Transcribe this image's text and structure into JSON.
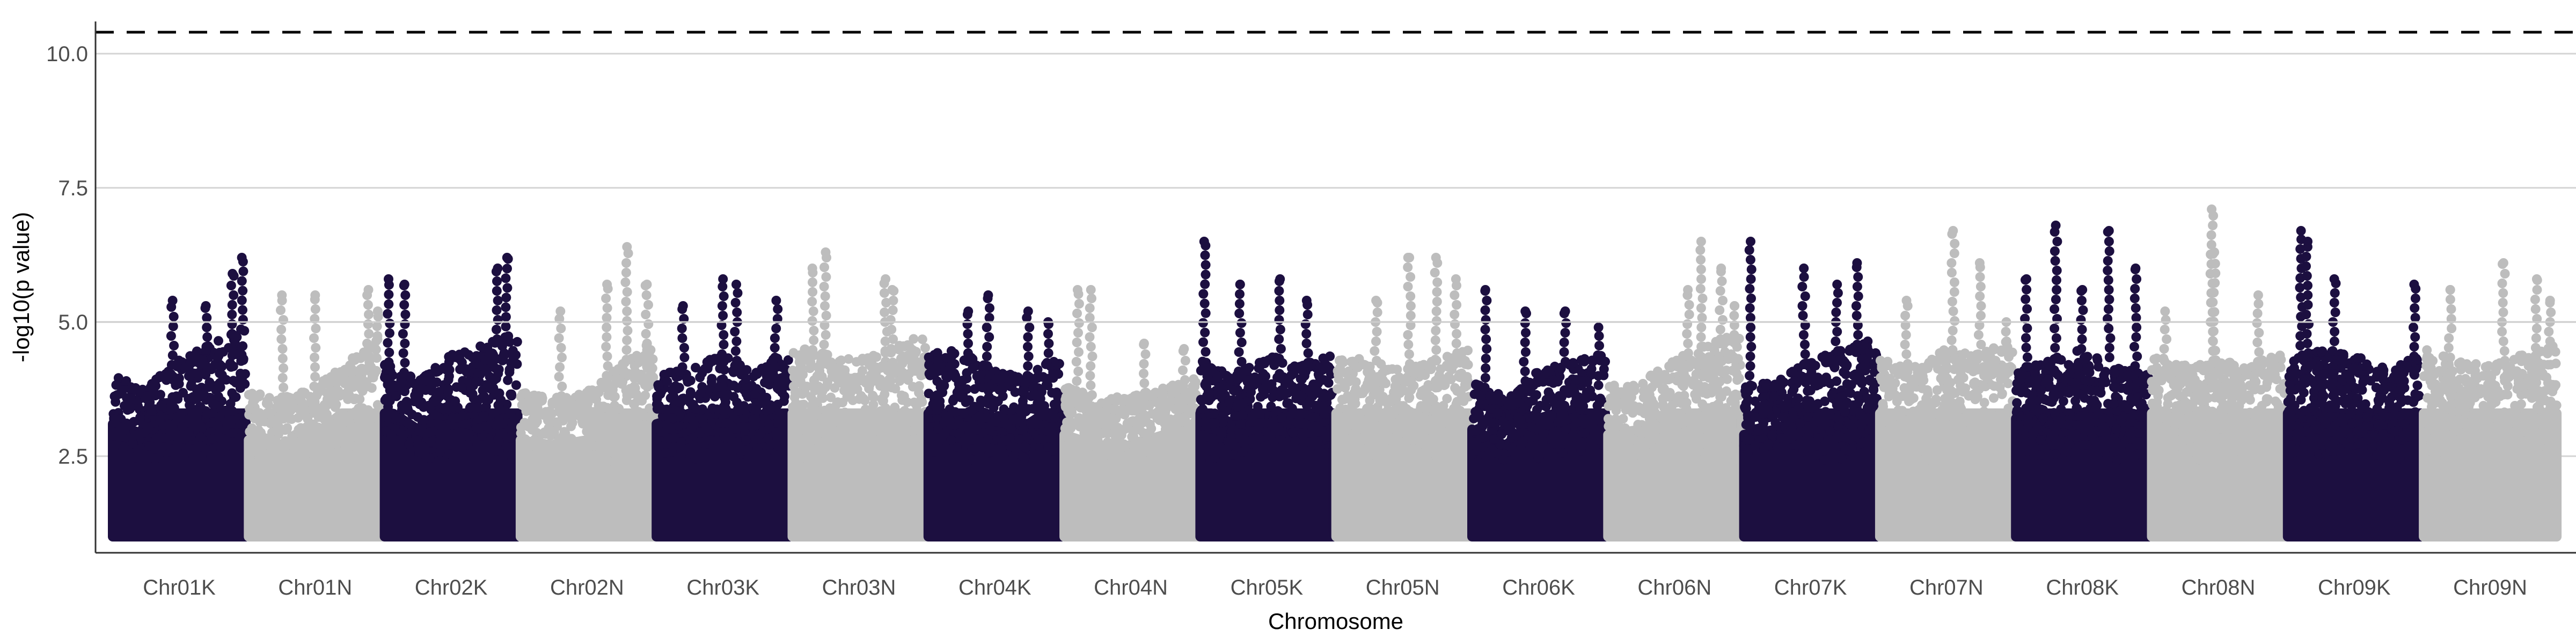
{
  "chart_data": {
    "type": "scatter",
    "title": "",
    "xlabel": "Chromosome",
    "ylabel": "-log10(p value)",
    "ylim": [
      0.6,
      10.45
    ],
    "yticks": [
      "2.5",
      "5.0",
      "7.5",
      "10.0"
    ],
    "ytick_values": [
      2.5,
      5.0,
      7.5,
      10.0
    ],
    "grid": "horizontal major lines",
    "legend": "none",
    "reference_lines": [
      {
        "y": 10.4,
        "style": "dashed",
        "color": "#000000"
      },
      {
        "y": 5.0,
        "style": "solid",
        "color": "#cccccc"
      }
    ],
    "point_min_y": 1.0,
    "colors": {
      "odd_chromosome": "#1c0f40",
      "even_chromosome": "#bdbdbd"
    },
    "categories": [
      "Chr01K",
      "Chr01N",
      "Chr02K",
      "Chr02N",
      "Chr03K",
      "Chr03N",
      "Chr04K",
      "Chr04N",
      "Chr05K",
      "Chr05N",
      "Chr06K",
      "Chr06N",
      "Chr07K",
      "Chr07N",
      "Chr08K",
      "Chr08N",
      "Chr09K",
      "Chr09N"
    ],
    "series": [
      {
        "chromosome": "Chr01K",
        "color": "#1c0f40",
        "band_top": [
          4.0,
          3.8,
          4.3,
          4.6,
          4.9
        ],
        "peaks": [
          [
            0.45,
            5.4
          ],
          [
            0.7,
            5.3
          ],
          [
            0.9,
            5.9
          ],
          [
            0.97,
            6.2
          ]
        ]
      },
      {
        "chromosome": "Chr01N",
        "color": "#bdbdbd",
        "band_top": [
          3.7,
          3.6,
          3.8,
          4.3,
          4.8
        ],
        "peaks": [
          [
            0.25,
            5.5
          ],
          [
            0.5,
            5.5
          ],
          [
            0.9,
            5.6
          ],
          [
            0.97,
            5.2
          ]
        ]
      },
      {
        "chromosome": "Chr02K",
        "color": "#1c0f40",
        "band_top": [
          4.3,
          3.9,
          4.4,
          4.6,
          4.8
        ],
        "peaks": [
          [
            0.03,
            5.8
          ],
          [
            0.15,
            5.7
          ],
          [
            0.85,
            6.0
          ],
          [
            0.92,
            6.2
          ]
        ]
      },
      {
        "chromosome": "Chr02N",
        "color": "#bdbdbd",
        "band_top": [
          3.7,
          3.6,
          3.7,
          4.2,
          4.7
        ],
        "peaks": [
          [
            0.3,
            5.2
          ],
          [
            0.65,
            5.7
          ],
          [
            0.8,
            6.4
          ],
          [
            0.95,
            5.7
          ]
        ]
      },
      {
        "chromosome": "Chr03K",
        "color": "#1c0f40",
        "band_top": [
          4.0,
          4.2,
          4.4,
          4.1,
          4.5
        ],
        "peaks": [
          [
            0.2,
            5.3
          ],
          [
            0.5,
            5.8
          ],
          [
            0.6,
            5.7
          ],
          [
            0.9,
            5.4
          ]
        ]
      },
      {
        "chromosome": "Chr03N",
        "color": "#bdbdbd",
        "band_top": [
          4.6,
          4.4,
          4.3,
          4.5,
          4.8
        ],
        "peaks": [
          [
            0.15,
            6.0
          ],
          [
            0.25,
            6.3
          ],
          [
            0.7,
            5.8
          ],
          [
            0.75,
            5.6
          ]
        ]
      },
      {
        "chromosome": "Chr04K",
        "color": "#1c0f40",
        "band_top": [
          4.4,
          4.5,
          4.1,
          4.0,
          4.4
        ],
        "peaks": [
          [
            0.3,
            5.2
          ],
          [
            0.45,
            5.5
          ],
          [
            0.75,
            5.2
          ],
          [
            0.9,
            5.0
          ]
        ]
      },
      {
        "chromosome": "Chr04N",
        "color": "#bdbdbd",
        "band_top": [
          3.8,
          3.6,
          3.6,
          3.8,
          4.0
        ],
        "peaks": [
          [
            0.1,
            5.6
          ],
          [
            0.2,
            5.6
          ],
          [
            0.6,
            4.6
          ],
          [
            0.9,
            4.5
          ]
        ]
      },
      {
        "chromosome": "Chr05K",
        "color": "#1c0f40",
        "band_top": [
          4.3,
          4.0,
          4.4,
          4.2,
          4.4
        ],
        "peaks": [
          [
            0.03,
            6.5
          ],
          [
            0.3,
            5.7
          ],
          [
            0.6,
            5.8
          ],
          [
            0.8,
            5.4
          ]
        ]
      },
      {
        "chromosome": "Chr05N",
        "color": "#bdbdbd",
        "band_top": [
          4.4,
          4.3,
          4.2,
          4.3,
          4.5
        ],
        "peaks": [
          [
            0.55,
            6.2
          ],
          [
            0.75,
            6.2
          ],
          [
            0.9,
            5.8
          ],
          [
            0.3,
            5.4
          ]
        ]
      },
      {
        "chromosome": "Chr06K",
        "color": "#1c0f40",
        "band_top": [
          3.9,
          3.6,
          4.1,
          4.3,
          4.4
        ],
        "peaks": [
          [
            0.1,
            5.6
          ],
          [
            0.4,
            5.2
          ],
          [
            0.7,
            5.2
          ],
          [
            0.95,
            4.9
          ]
        ]
      },
      {
        "chromosome": "Chr06N",
        "color": "#bdbdbd",
        "band_top": [
          3.8,
          3.9,
          4.3,
          4.6,
          4.8
        ],
        "peaks": [
          [
            0.6,
            5.6
          ],
          [
            0.7,
            6.5
          ],
          [
            0.85,
            6.0
          ],
          [
            0.95,
            5.3
          ]
        ]
      },
      {
        "chromosome": "Chr07K",
        "color": "#1c0f40",
        "band_top": [
          3.8,
          3.9,
          4.3,
          4.5,
          4.7
        ],
        "peaks": [
          [
            0.05,
            6.5
          ],
          [
            0.45,
            6.0
          ],
          [
            0.85,
            6.1
          ],
          [
            0.7,
            5.7
          ]
        ]
      },
      {
        "chromosome": "Chr07N",
        "color": "#bdbdbd",
        "band_top": [
          4.3,
          4.2,
          4.5,
          4.4,
          4.7
        ],
        "peaks": [
          [
            0.2,
            5.4
          ],
          [
            0.55,
            6.7
          ],
          [
            0.75,
            6.1
          ],
          [
            0.95,
            5.0
          ]
        ]
      },
      {
        "chromosome": "Chr08K",
        "color": "#1c0f40",
        "band_top": [
          4.1,
          4.3,
          4.5,
          4.3,
          4.1
        ],
        "peaks": [
          [
            0.08,
            5.8
          ],
          [
            0.3,
            6.8
          ],
          [
            0.5,
            5.6
          ],
          [
            0.7,
            6.7
          ],
          [
            0.9,
            6.0
          ]
        ]
      },
      {
        "chromosome": "Chr08N",
        "color": "#bdbdbd",
        "band_top": [
          4.4,
          4.2,
          4.3,
          4.2,
          4.5
        ],
        "peaks": [
          [
            0.1,
            5.2
          ],
          [
            0.45,
            7.1
          ],
          [
            0.47,
            6.3
          ],
          [
            0.8,
            5.5
          ]
        ]
      },
      {
        "chromosome": "Chr09K",
        "color": "#1c0f40",
        "band_top": [
          4.3,
          4.5,
          4.4,
          4.2,
          4.4
        ],
        "peaks": [
          [
            0.1,
            6.7
          ],
          [
            0.15,
            6.5
          ],
          [
            0.35,
            5.8
          ],
          [
            0.95,
            5.7
          ]
        ]
      },
      {
        "chromosome": "Chr09N",
        "color": "#bdbdbd",
        "band_top": [
          4.5,
          4.3,
          4.2,
          4.4,
          4.7
        ],
        "peaks": [
          [
            0.2,
            5.6
          ],
          [
            0.6,
            6.1
          ],
          [
            0.85,
            5.8
          ],
          [
            0.95,
            5.4
          ]
        ]
      }
    ]
  }
}
